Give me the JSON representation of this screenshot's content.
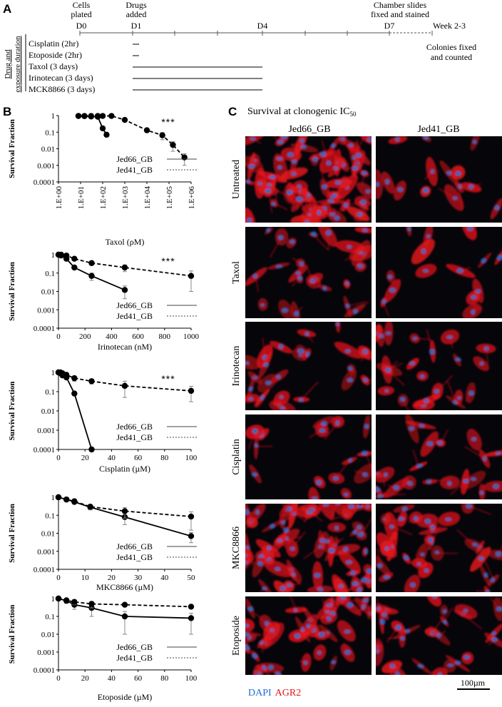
{
  "panel_a": {
    "letter": "A",
    "timeline_labels": [
      {
        "id": "cells",
        "lines": [
          "Cells",
          "plated"
        ]
      },
      {
        "id": "drugs",
        "lines": [
          "Drugs",
          "added"
        ]
      },
      {
        "id": "chamber",
        "lines": [
          "Chamber slides",
          "fixed and stained"
        ]
      }
    ],
    "days": {
      "d0": "D0",
      "d1": "D1",
      "d4": "D4",
      "d7": "D7",
      "week": "Week 2-3"
    },
    "colonies": [
      "Colonies fixed",
      "and counted"
    ],
    "side_label": [
      "Drug and",
      "exposure duration"
    ],
    "drugs": [
      {
        "label": "Cisplatin (2hr)",
        "duration": "2hr"
      },
      {
        "label": "Etoposide (2hr)",
        "duration": "2hr"
      },
      {
        "label": "Taxol (3 days)",
        "duration": "3 days"
      },
      {
        "label": "Irinotecan (3 days)",
        "duration": "3 days"
      },
      {
        "label": "MCK8866 (3 days)",
        "duration": "3 days"
      }
    ]
  },
  "panel_b": {
    "letter": "B"
  },
  "panel_c": {
    "letter": "C",
    "title": "Survival at clonogenic IC",
    "title_sub": "50",
    "columns": [
      "Jed66_GB",
      "Jed41_GB"
    ],
    "rows": [
      "Untreated",
      "Taxol",
      "Irinotecan",
      "Cisplatin",
      "MKC8866",
      "Etoposide"
    ],
    "legend_dapi": "DAPI",
    "legend_agr2": "AGR2",
    "scale_bar": "100µm",
    "colors": {
      "dapi": "#1f6fd1",
      "agr2": "#e3141b",
      "background": "#05050a"
    }
  },
  "chart_data": [
    {
      "type": "line",
      "xlabel": "Taxol (ρM)",
      "ylabel": "Survival Fraction",
      "yscale": "log",
      "xscale": "log",
      "ylim": [
        0.0001,
        1
      ],
      "xlim": [
        1,
        1000000
      ],
      "yticks": [
        "0.0001",
        "0.001",
        "0.01",
        "0.1",
        "1"
      ],
      "xticks": [
        "1.E+00",
        "1.E+01",
        "1.E+02",
        "1.E+03",
        "1.E+04",
        "1.E+05",
        "1.E+06"
      ],
      "annotation": "***",
      "series": [
        {
          "name": "Jed66_GB",
          "style": "solid",
          "x": [
            8,
            15,
            30,
            60,
            100,
            150
          ],
          "y": [
            0.95,
            0.92,
            0.88,
            0.85,
            0.17,
            0.07
          ],
          "err": [
            0,
            0,
            0,
            0,
            0,
            0
          ]
        },
        {
          "name": "Jed41_GB",
          "style": "dashed",
          "x": [
            8,
            15,
            30,
            60,
            100,
            250,
            1000,
            10000,
            50000,
            150000,
            500000
          ],
          "y": [
            0.95,
            0.95,
            0.95,
            0.95,
            0.95,
            0.95,
            0.55,
            0.13,
            0.065,
            0.017,
            0.003
          ],
          "err": [
            0,
            0,
            0,
            0,
            0,
            0,
            0,
            0,
            0.03,
            0.01,
            0.002
          ]
        }
      ]
    },
    {
      "type": "line",
      "xlabel": "Irinotecan (nM)",
      "ylabel": "Survival Fraction",
      "yscale": "log",
      "ylim": [
        0.0001,
        1
      ],
      "xlim": [
        0,
        1000
      ],
      "yticks": [
        "0.0001",
        "0.001",
        "0.01",
        "0.1",
        "1"
      ],
      "xticks": [
        "0",
        "200",
        "400",
        "600",
        "800",
        "1000"
      ],
      "annotation": "***",
      "series": [
        {
          "name": "Jed66_GB",
          "style": "solid",
          "x": [
            0,
            20,
            60,
            120,
            250,
            500
          ],
          "y": [
            1,
            0.9,
            0.6,
            0.2,
            0.07,
            0.012
          ],
          "err": [
            0,
            0,
            0,
            0,
            0.03,
            0.008
          ]
        },
        {
          "name": "Jed41_GB",
          "style": "dashed",
          "x": [
            0,
            20,
            60,
            120,
            250,
            500,
            1000
          ],
          "y": [
            1,
            1,
            0.9,
            0.6,
            0.35,
            0.2,
            0.07
          ],
          "err": [
            0,
            0,
            0,
            0,
            0,
            0.08,
            0.06
          ]
        }
      ]
    },
    {
      "type": "line",
      "xlabel": "Cisplatin (µM)",
      "ylabel": "Survival Fraction",
      "yscale": "log",
      "ylim": [
        0.0001,
        1
      ],
      "xlim": [
        0,
        100
      ],
      "yticks": [
        "0.0001",
        "0.001",
        "0.01",
        "0.1",
        "1"
      ],
      "xticks": [
        "0",
        "20",
        "40",
        "60",
        "80",
        "100"
      ],
      "annotation": "***",
      "series": [
        {
          "name": "Jed66_GB",
          "style": "solid",
          "x": [
            0,
            1.5,
            3,
            6,
            12,
            25
          ],
          "y": [
            1,
            0.9,
            0.7,
            0.55,
            0.08,
            0.0001
          ],
          "err": [
            0,
            0,
            0,
            0,
            0,
            0
          ]
        },
        {
          "name": "Jed41_GB",
          "style": "dashed",
          "x": [
            0,
            1.5,
            3,
            6,
            12,
            25,
            50,
            100
          ],
          "y": [
            1,
            1,
            0.9,
            0.75,
            0.5,
            0.35,
            0.2,
            0.11
          ],
          "err": [
            0,
            0,
            0,
            0,
            0.15,
            0.1,
            0.15,
            0.08
          ]
        }
      ]
    },
    {
      "type": "line",
      "xlabel": "MKC8866 (µM)",
      "ylabel": "Survival Fraction",
      "yscale": "log",
      "ylim": [
        0.0001,
        1
      ],
      "xlim": [
        0,
        50
      ],
      "yticks": [
        "0.0001",
        "0.001",
        "0.01",
        "0.1",
        "1"
      ],
      "xticks": [
        "0",
        "10",
        "20",
        "30",
        "40",
        "50"
      ],
      "annotation": "",
      "series": [
        {
          "name": "Jed66_GB",
          "style": "solid",
          "x": [
            0,
            3,
            6,
            12,
            25,
            50
          ],
          "y": [
            1,
            0.75,
            0.55,
            0.28,
            0.08,
            0.007
          ],
          "err": [
            0,
            0,
            0.1,
            0.08,
            0.05,
            0.004
          ]
        },
        {
          "name": "Jed41_GB",
          "style": "dashed",
          "x": [
            0,
            3,
            6,
            12,
            25,
            50
          ],
          "y": [
            1,
            0.75,
            0.6,
            0.3,
            0.17,
            0.085
          ],
          "err": [
            0,
            0,
            0.1,
            0.1,
            0.1,
            0.07
          ]
        }
      ]
    },
    {
      "type": "line",
      "xlabel": "Etoposide (µM)",
      "ylabel": "Survival Fraction",
      "yscale": "log",
      "ylim": [
        0.0001,
        1
      ],
      "xlim": [
        0,
        100
      ],
      "yticks": [
        "0.0001",
        "0.001",
        "0.01",
        "0.1",
        "1"
      ],
      "xticks": [
        "0",
        "20",
        "40",
        "60",
        "80",
        "100"
      ],
      "annotation": "",
      "series": [
        {
          "name": "Jed66_GB",
          "style": "solid",
          "x": [
            0,
            6,
            12,
            25,
            50,
            100
          ],
          "y": [
            1,
            0.75,
            0.45,
            0.3,
            0.1,
            0.08
          ],
          "err": [
            0,
            0.2,
            0.2,
            0.2,
            0.09,
            0.07
          ]
        },
        {
          "name": "Jed41_GB",
          "style": "dashed",
          "x": [
            0,
            6,
            12,
            25,
            50,
            100
          ],
          "y": [
            1,
            0.8,
            0.65,
            0.5,
            0.45,
            0.35
          ],
          "err": [
            0,
            0,
            0.2,
            0.2,
            0,
            0
          ]
        }
      ]
    }
  ]
}
